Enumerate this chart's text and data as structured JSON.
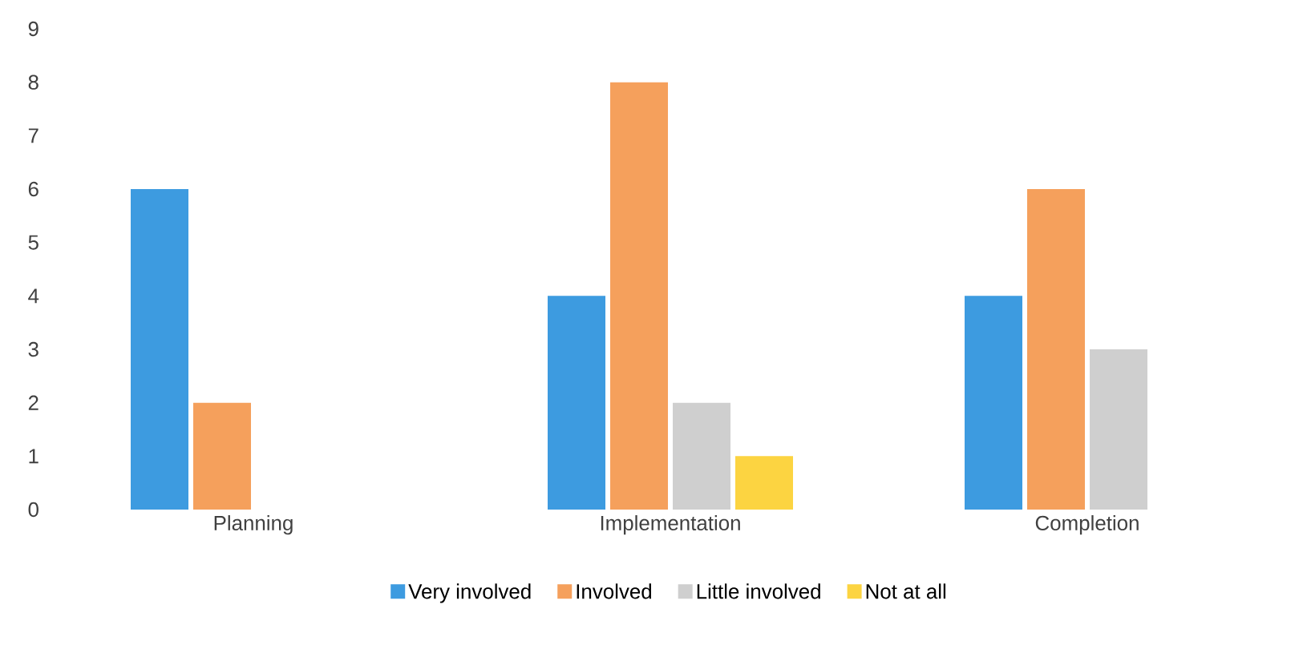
{
  "chart_data": {
    "type": "bar",
    "categories": [
      "Planning",
      "Implementation",
      "Completion"
    ],
    "series": [
      {
        "name": "Very involved",
        "color": "#3d9be0",
        "values": [
          6,
          4,
          4
        ]
      },
      {
        "name": "Involved",
        "color": "#f5a05c",
        "values": [
          2,
          8,
          6
        ]
      },
      {
        "name": "Little involved",
        "color": "#cfcfcf",
        "values": [
          0,
          2,
          3
        ]
      },
      {
        "name": "Not at all",
        "color": "#fcd441",
        "values": [
          0,
          1,
          0
        ]
      }
    ],
    "ylim": [
      0,
      9
    ],
    "yticks": [
      0,
      1,
      2,
      3,
      4,
      5,
      6,
      7,
      8,
      9
    ],
    "legend": "bottom",
    "grid": false
  }
}
